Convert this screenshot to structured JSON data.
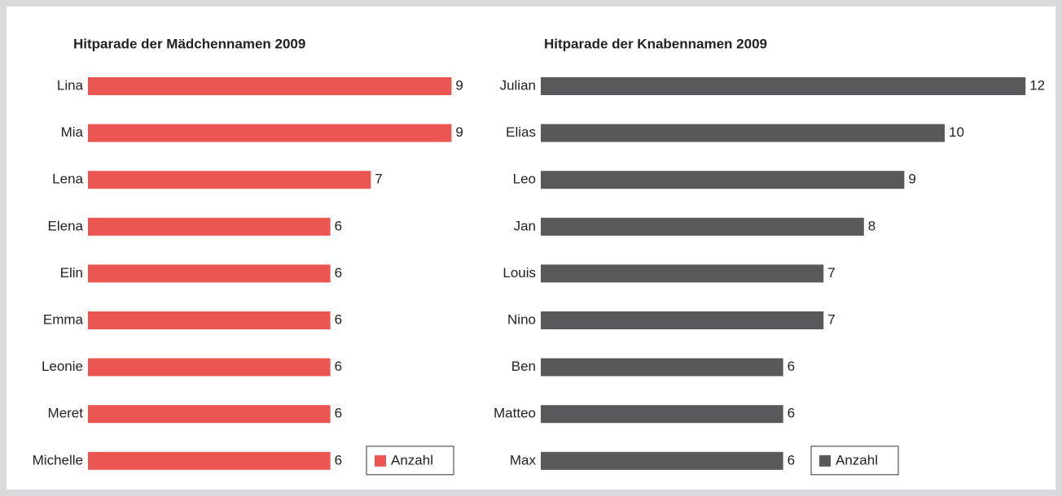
{
  "chart_data": [
    {
      "type": "bar",
      "orientation": "horizontal",
      "title": "Hitparade der Mädchennamen 2009",
      "categories": [
        "Lina",
        "Mia",
        "Lena",
        "Elena",
        "Elin",
        "Emma",
        "Leonie",
        "Meret",
        "Michelle"
      ],
      "series": [
        {
          "name": "Anzahl",
          "color": "#eb5552",
          "values": [
            9,
            9,
            7,
            6,
            6,
            6,
            6,
            6,
            6
          ]
        }
      ],
      "legend": "bottom-right"
    },
    {
      "type": "bar",
      "orientation": "horizontal",
      "title": "Hitparade der Knabennamen 2009",
      "categories": [
        "Julian",
        "Elias",
        "Leo",
        "Jan",
        "Louis",
        "Nino",
        "Ben",
        "Matteo",
        "Max"
      ],
      "series": [
        {
          "name": "Anzahl",
          "color": "#58595b",
          "values": [
            12,
            10,
            9,
            8,
            7,
            7,
            6,
            6,
            6
          ]
        }
      ],
      "legend": "bottom-right"
    }
  ]
}
